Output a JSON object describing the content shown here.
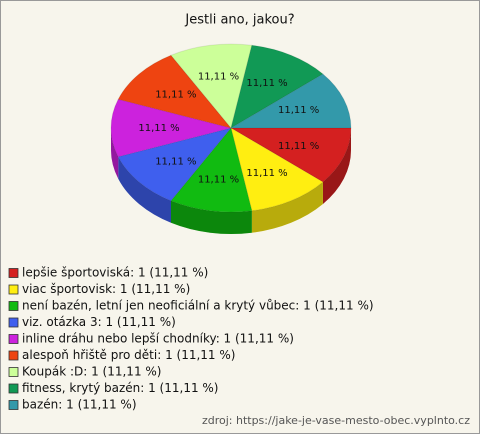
{
  "chart_data": {
    "type": "pie3d",
    "title": "Jestli ano, jakou?",
    "categories": [
      "lepšie športoviská: 1 (11,11 %)",
      "viac športovisk: 1 (11,11 %)",
      "není bazén, letní jen neoficiální a krytý vůbec: 1 (11,11 %)",
      "viz. otázka 3: 1 (11,11 %)",
      "inline dráhu nebo lepší chodníky: 1 (11,11 %)",
      "alespoň hřiště pro děti: 1 (11,11 %)",
      "Koupák :D: 1 (11,11 %)",
      "fitness, krytý bazén: 1 (11,11 %)",
      "bazén: 1 (11,11 %)"
    ],
    "values": [
      1,
      1,
      1,
      1,
      1,
      1,
      1,
      1,
      1
    ],
    "value_labels": [
      "11,11 %",
      "11,11 %",
      "11,11 %",
      "11,11 %",
      "11,11 %",
      "11,11 %",
      "11,11 %",
      "11,11 %",
      "11,11 %"
    ],
    "colors": [
      "#d42020",
      "#ffee11",
      "#11bb11",
      "#3f5fee",
      "#cc22dd",
      "#ee4411",
      "#ccff99",
      "#119955",
      "#3399aa"
    ],
    "source": "zdroj: https://jake-je-vase-mesto-obec.vyplnto.cz"
  }
}
